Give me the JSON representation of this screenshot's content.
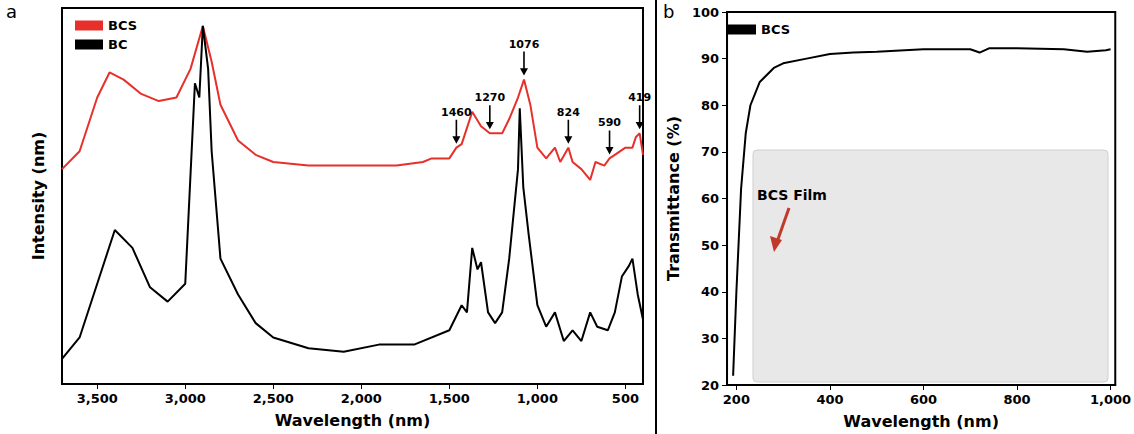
{
  "chart_data": [
    {
      "panel": "a",
      "type": "line",
      "x_label": "Wavelength (nm)",
      "y_label": "Intensity (nm)",
      "xlim": [
        3700,
        400
      ],
      "xticks": [
        3500,
        3000,
        2500,
        2000,
        1500,
        1000,
        500
      ],
      "ylim": [
        0,
        105
      ],
      "tick_labels": "x",
      "grid": false,
      "legend": "upper left",
      "series": [
        {
          "name": "BCS",
          "color": "#e8302a",
          "x": [
            3700,
            3600,
            3500,
            3430,
            3350,
            3250,
            3150,
            3050,
            2970,
            2900,
            2850,
            2800,
            2700,
            2600,
            2500,
            2300,
            2000,
            1800,
            1650,
            1600,
            1500,
            1460,
            1430,
            1370,
            1320,
            1270,
            1200,
            1160,
            1110,
            1076,
            1040,
            1000,
            950,
            900,
            870,
            824,
            800,
            750,
            700,
            670,
            620,
            590,
            560,
            500,
            460,
            440,
            419,
            400
          ],
          "values": [
            60,
            65,
            80,
            87,
            85,
            81,
            79,
            80,
            88,
            100,
            90,
            78,
            68,
            64,
            62,
            61,
            61,
            61,
            62,
            63,
            63,
            66,
            67,
            76,
            72,
            70,
            70,
            74,
            80,
            85,
            78,
            66,
            63,
            66,
            62,
            66,
            62,
            60,
            57,
            62,
            61,
            63,
            64,
            66,
            66,
            69,
            70,
            64
          ]
        },
        {
          "name": "BC",
          "color": "#000000",
          "x": [
            3700,
            3600,
            3500,
            3400,
            3300,
            3200,
            3100,
            3000,
            2945,
            2920,
            2900,
            2870,
            2850,
            2800,
            2700,
            2600,
            2500,
            2300,
            2100,
            1900,
            1700,
            1500,
            1430,
            1400,
            1370,
            1340,
            1320,
            1280,
            1240,
            1200,
            1160,
            1110,
            1100,
            1080,
            1050,
            1000,
            950,
            900,
            850,
            800,
            750,
            700,
            660,
            600,
            560,
            520,
            480,
            460,
            430,
            400
          ],
          "values": [
            7,
            13,
            28,
            43,
            38,
            27,
            23,
            28,
            84,
            80,
            100,
            88,
            65,
            35,
            25,
            17,
            13,
            10,
            9,
            11,
            11,
            15,
            22,
            20,
            38,
            32,
            34,
            20,
            17,
            20,
            35,
            60,
            77,
            55,
            42,
            22,
            16,
            20,
            12,
            15,
            12,
            20,
            16,
            15,
            20,
            30,
            33,
            35,
            25,
            18
          ]
        }
      ],
      "annotations": [
        {
          "text": "1460",
          "x": 1460,
          "series": "BCS"
        },
        {
          "text": "1270",
          "x": 1270,
          "series": "BCS"
        },
        {
          "text": "1076",
          "x": 1076,
          "series": "BCS"
        },
        {
          "text": "824",
          "x": 824,
          "series": "BCS"
        },
        {
          "text": "590",
          "x": 590,
          "series": "BCS"
        },
        {
          "text": "419",
          "x": 419,
          "series": "BCS"
        }
      ]
    },
    {
      "panel": "b",
      "type": "line",
      "x_label": "Wavelength (nm)",
      "y_label": "Transmittance (%)",
      "xlim": [
        180,
        1010
      ],
      "xticks": [
        200,
        400,
        600,
        800,
        1000
      ],
      "ylim": [
        20,
        100
      ],
      "yticks": [
        20,
        30,
        40,
        50,
        60,
        70,
        80,
        90,
        100
      ],
      "grid": false,
      "legend": "upper left",
      "series": [
        {
          "name": "BCS",
          "color": "#000000",
          "x": [
            193,
            200,
            210,
            220,
            230,
            250,
            280,
            300,
            350,
            400,
            450,
            500,
            600,
            700,
            720,
            740,
            800,
            900,
            950,
            990,
            1000
          ],
          "values": [
            22,
            40,
            62,
            74,
            80,
            85,
            88,
            89,
            90,
            91,
            91.3,
            91.5,
            92,
            92,
            91.3,
            92.2,
            92.2,
            92,
            91.5,
            91.8,
            92
          ]
        }
      ],
      "inset_label": "BCS Film"
    }
  ]
}
